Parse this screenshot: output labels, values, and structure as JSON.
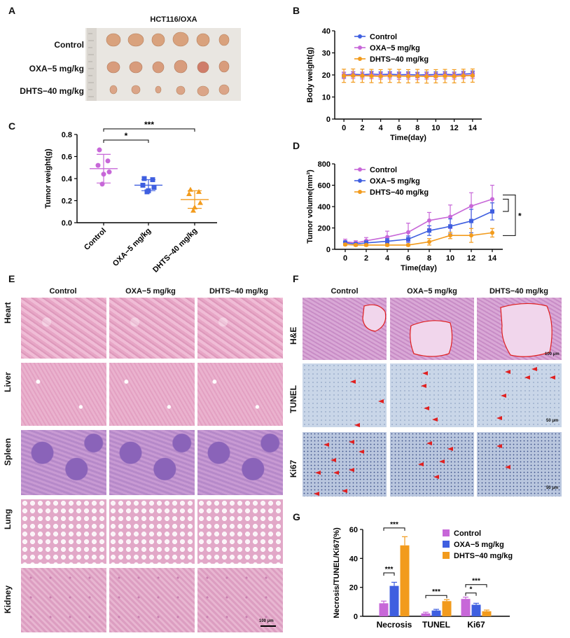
{
  "panels": {
    "A": "A",
    "B": "B",
    "C": "C",
    "D": "D",
    "E": "E",
    "F": "F",
    "G": "G"
  },
  "panelA": {
    "title": "HCT116/OXA",
    "rows": [
      "Control",
      "OXA−5 mg/kg",
      "DHTS−40 mg/kg"
    ]
  },
  "groups": [
    "Control",
    "OXA−5 mg/kg",
    "DHTS−40 mg/kg"
  ],
  "colors": {
    "control": "#c767d8",
    "oxa": "#3f5fe0",
    "dhts": "#f29b1d",
    "control_b": "#3f5fe0",
    "oxa_b": "#c767d8"
  },
  "panelE": {
    "cols": [
      "Control",
      "OXA−5 mg/kg",
      "DHTS−40 mg/kg"
    ],
    "rows": [
      "Heart",
      "Liver",
      "Spleen",
      "Lung",
      "Kidney"
    ],
    "scale": "100 μm"
  },
  "panelF": {
    "cols": [
      "Control",
      "OXA−5 mg/kg",
      "DHTS−40 mg/kg"
    ],
    "rows": [
      "H&E",
      "TUNEL",
      "Ki67"
    ],
    "scales": [
      "100 μm",
      "50 μm",
      "50 μm"
    ]
  },
  "chart_data": [
    {
      "id": "B",
      "type": "line",
      "xlabel": "Time(day)",
      "ylabel": "Body weight(g)",
      "xlim": [
        -1,
        15
      ],
      "ylim": [
        0,
        40
      ],
      "xticks": [
        0,
        2,
        4,
        6,
        8,
        10,
        12,
        14
      ],
      "yticks": [
        0,
        10,
        20,
        30,
        40
      ],
      "legend": "top-right",
      "x": [
        0,
        1,
        2,
        3,
        4,
        5,
        6,
        7,
        8,
        9,
        10,
        11,
        12,
        13,
        14
      ],
      "series": [
        {
          "name": "Control",
          "values": [
            20,
            20.3,
            20.1,
            20.4,
            20.2,
            20.3,
            20.1,
            20.2,
            20.0,
            20.1,
            20.2,
            20.3,
            20.1,
            20.4,
            20.6
          ],
          "err": 1.2
        },
        {
          "name": "OXA−5 mg/kg",
          "values": [
            19.8,
            19.9,
            19.7,
            19.8,
            19.6,
            19.7,
            19.5,
            19.6,
            19.4,
            19.6,
            19.5,
            19.7,
            19.6,
            19.8,
            19.9
          ],
          "err": 1.5
        },
        {
          "name": "DHTS−40 mg/kg",
          "values": [
            19.6,
            19.7,
            19.6,
            19.5,
            19.4,
            19.6,
            19.5,
            19.4,
            19.5,
            19.3,
            19.4,
            19.5,
            19.4,
            19.6,
            19.7
          ],
          "err": 3
        }
      ]
    },
    {
      "id": "C",
      "type": "scatter",
      "ylabel": "Tumor weight(g)",
      "ylim": [
        0,
        0.8
      ],
      "yticks": [
        "0.0",
        "0.2",
        "0.4",
        "0.6",
        "0.8"
      ],
      "categories": [
        "Control",
        "OXA−5 mg/kg",
        "DHTS−40 mg/kg"
      ],
      "points": [
        [
          0.66,
          0.56,
          0.52,
          0.46,
          0.44,
          0.35
        ],
        [
          0.4,
          0.39,
          0.34,
          0.32,
          0.29,
          0.28
        ],
        [
          0.3,
          0.28,
          0.26,
          0.18,
          0.14,
          0.11
        ]
      ],
      "mean": [
        0.49,
        0.34,
        0.21
      ],
      "sd": [
        0.13,
        0.05,
        0.08
      ],
      "significance": [
        {
          "from": 0,
          "to": 1,
          "label": "*"
        },
        {
          "from": 0,
          "to": 2,
          "label": "***"
        }
      ]
    },
    {
      "id": "D",
      "type": "line",
      "xlabel": "Time(day)",
      "ylabel": "Tumor volume(mm³)",
      "xlim": [
        -1,
        15
      ],
      "ylim": [
        0,
        800
      ],
      "xticks": [
        0,
        2,
        4,
        6,
        8,
        10,
        12,
        14
      ],
      "yticks": [
        0,
        200,
        400,
        600,
        800
      ],
      "legend": "top-left",
      "x": [
        0,
        1,
        2,
        4,
        6,
        8,
        10,
        12,
        14
      ],
      "series": [
        {
          "name": "Control",
          "values": [
            70,
            60,
            80,
            115,
            160,
            270,
            305,
            405,
            470
          ],
          "err": [
            25,
            20,
            30,
            55,
            85,
            75,
            110,
            125,
            130
          ]
        },
        {
          "name": "OXA−5 mg/kg",
          "values": [
            60,
            50,
            60,
            75,
            95,
            175,
            215,
            265,
            355
          ],
          "err": [
            20,
            15,
            20,
            25,
            30,
            45,
            70,
            110,
            80
          ]
        },
        {
          "name": "DHTS−40 mg/kg",
          "values": [
            45,
            40,
            40,
            40,
            40,
            70,
            130,
            130,
            155
          ],
          "err": [
            10,
            10,
            10,
            10,
            10,
            30,
            30,
            65,
            40
          ]
        }
      ],
      "significance": [
        {
          "label": "*"
        }
      ]
    },
    {
      "id": "G",
      "type": "bar",
      "ylabel": "Necrosis/TUNEL/Ki67(%)",
      "ylim": [
        0,
        60
      ],
      "yticks": [
        0,
        20,
        40,
        60
      ],
      "legend": "top-right",
      "categories": [
        "Necrosis",
        "TUNEL",
        "Ki67"
      ],
      "series": [
        {
          "name": "Control",
          "values": [
            9,
            2,
            12
          ],
          "err": [
            1.5,
            0.8,
            1.2
          ]
        },
        {
          "name": "OXA−5 mg/kg",
          "values": [
            21,
            4,
            8
          ],
          "err": [
            2.5,
            0.8,
            1
          ]
        },
        {
          "name": "DHTS−40 mg/kg",
          "values": [
            49,
            10.5,
            3.5
          ],
          "err": [
            6,
            1,
            0.8
          ]
        }
      ],
      "significance": [
        {
          "cat": 0,
          "pair": [
            0,
            1
          ],
          "label": "***"
        },
        {
          "cat": 0,
          "pair": [
            0,
            2
          ],
          "label": "***"
        },
        {
          "cat": 1,
          "pair": [
            0,
            2
          ],
          "label": "***"
        },
        {
          "cat": 2,
          "pair": [
            0,
            1
          ],
          "label": "*"
        },
        {
          "cat": 2,
          "pair": [
            0,
            2
          ],
          "label": "***"
        }
      ]
    }
  ]
}
